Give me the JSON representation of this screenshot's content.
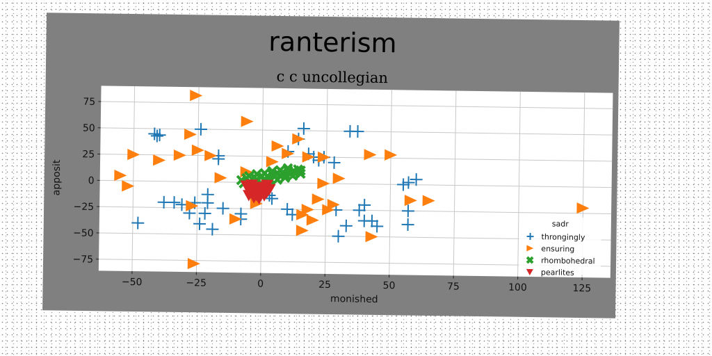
{
  "chart_data": {
    "type": "scatter",
    "title": "ranterism",
    "subtitle": "c c uncollegian",
    "xlabel": "monished",
    "ylabel": "apposit",
    "xlim": [
      -63,
      136
    ],
    "ylim": [
      -86,
      90
    ],
    "xticks": [
      -50,
      -25,
      0,
      25,
      50,
      75,
      100,
      125
    ],
    "yticks": [
      -75,
      -50,
      -25,
      0,
      25,
      50,
      75
    ],
    "grid": true,
    "legend": {
      "title": "sadr",
      "placement": "lower right"
    },
    "series": [
      {
        "name": "throngingly",
        "marker": "plus",
        "color": "#1f77b4",
        "points": [
          [
            -42,
            45
          ],
          [
            -41,
            43
          ],
          [
            -40,
            44
          ],
          [
            -24,
            50
          ],
          [
            -17,
            25
          ],
          [
            -17,
            22
          ],
          [
            -48,
            -40
          ],
          [
            -38,
            -20
          ],
          [
            -34,
            -20
          ],
          [
            -31,
            -22
          ],
          [
            -26,
            -20
          ],
          [
            -28,
            -30
          ],
          [
            -24,
            -40
          ],
          [
            -22,
            -30
          ],
          [
            -21,
            -20
          ],
          [
            -21,
            -12
          ],
          [
            -19,
            -45
          ],
          [
            -15,
            -25
          ],
          [
            -8,
            -35
          ],
          [
            -8,
            -30
          ],
          [
            -4,
            -10
          ],
          [
            10,
            30
          ],
          [
            14,
            42
          ],
          [
            16,
            52
          ],
          [
            18,
            28
          ],
          [
            20,
            25
          ],
          [
            22,
            22
          ],
          [
            24,
            25
          ],
          [
            28,
            20
          ],
          [
            30,
            -50
          ],
          [
            29,
            -25
          ],
          [
            33,
            -40
          ],
          [
            34,
            50
          ],
          [
            37,
            50
          ],
          [
            38,
            -25
          ],
          [
            40,
            -35
          ],
          [
            40,
            -20
          ],
          [
            43,
            -35
          ],
          [
            45,
            -40
          ],
          [
            55,
            0
          ],
          [
            57,
            2
          ],
          [
            60,
            5
          ],
          [
            57,
            -25
          ],
          [
            57,
            -38
          ],
          [
            10,
            -25
          ],
          [
            12,
            -30
          ],
          [
            3,
            -12
          ],
          [
            4,
            -15
          ]
        ]
      },
      {
        "name": "ensuring",
        "marker": "triangle-right",
        "color": "#ff7f0e",
        "points": [
          [
            -26,
            82
          ],
          [
            -28,
            45
          ],
          [
            -25,
            30
          ],
          [
            -20,
            25
          ],
          [
            -16,
            4
          ],
          [
            -32,
            25
          ],
          [
            -40,
            20
          ],
          [
            -50,
            25
          ],
          [
            -55,
            5
          ],
          [
            -52,
            -5
          ],
          [
            -10,
            -35
          ],
          [
            -6,
            10
          ],
          [
            -2,
            -20
          ],
          [
            -27,
            -23
          ],
          [
            -26,
            -78
          ],
          [
            -6,
            58
          ],
          [
            4,
            20
          ],
          [
            6,
            35
          ],
          [
            10,
            28
          ],
          [
            14,
            42
          ],
          [
            18,
            25
          ],
          [
            18,
            -25
          ],
          [
            16,
            -30
          ],
          [
            20,
            -35
          ],
          [
            22,
            -15
          ],
          [
            26,
            -25
          ],
          [
            24,
            0
          ],
          [
            30,
            5
          ],
          [
            28,
            -20
          ],
          [
            42,
            28
          ],
          [
            50,
            28
          ],
          [
            58,
            -15
          ],
          [
            65,
            -15
          ],
          [
            125,
            -20
          ],
          [
            16,
            -45
          ],
          [
            43,
            -50
          ],
          [
            24,
            25
          ]
        ]
      },
      {
        "name": "rhombohedral",
        "marker": "x",
        "color": "#2ca02c",
        "points": [
          [
            -8,
            2
          ],
          [
            -6,
            4
          ],
          [
            -5,
            0
          ],
          [
            -3,
            5
          ],
          [
            -2,
            3
          ],
          [
            0,
            6
          ],
          [
            1,
            2
          ],
          [
            2,
            6
          ],
          [
            3,
            4
          ],
          [
            4,
            8
          ],
          [
            5,
            6
          ],
          [
            6,
            9
          ],
          [
            7,
            7
          ],
          [
            8,
            10
          ],
          [
            9,
            8
          ],
          [
            10,
            12
          ],
          [
            11,
            9
          ],
          [
            12,
            11
          ],
          [
            13,
            10
          ],
          [
            14,
            13
          ],
          [
            15,
            12
          ],
          [
            -4,
            -2
          ],
          [
            -7,
            -1
          ],
          [
            0,
            -1
          ],
          [
            3,
            1
          ],
          [
            6,
            3
          ],
          [
            9,
            5
          ],
          [
            12,
            7
          ],
          [
            15,
            9
          ],
          [
            -5,
            6
          ],
          [
            -2,
            8
          ],
          [
            1,
            9
          ],
          [
            4,
            11
          ],
          [
            7,
            12
          ],
          [
            10,
            14
          ]
        ]
      },
      {
        "name": "pearlites",
        "marker": "triangle-down",
        "color": "#d62728",
        "points": [
          [
            -6,
            -3
          ],
          [
            -5,
            -6
          ],
          [
            -4,
            -2
          ],
          [
            -3,
            -8
          ],
          [
            -2,
            -5
          ],
          [
            -1,
            -10
          ],
          [
            0,
            -4
          ],
          [
            1,
            -7
          ],
          [
            2,
            -2
          ],
          [
            3,
            -6
          ],
          [
            -5,
            -12
          ],
          [
            -3,
            -14
          ],
          [
            -1,
            -15
          ],
          [
            1,
            -12
          ],
          [
            -4,
            -9
          ],
          [
            -2,
            -12
          ],
          [
            0,
            -9
          ],
          [
            2,
            -9
          ]
        ]
      }
    ]
  }
}
